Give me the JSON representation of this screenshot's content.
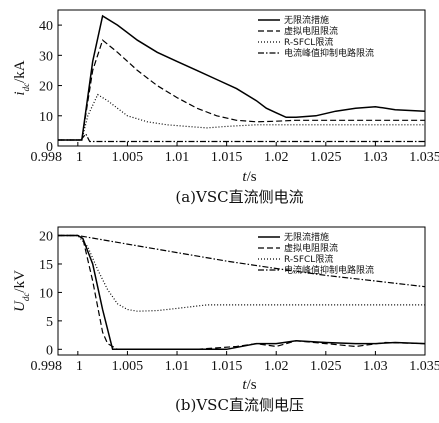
{
  "chart_data": [
    {
      "type": "line",
      "ylabel": "i_dc/kA",
      "ylabel_main": "i",
      "ylabel_sub": "dc",
      "ylabel_unit": "/kA",
      "xlabel_var": "t",
      "xlabel_unit": "/s",
      "caption": "(a)VSC直流侧电流",
      "xlim": [
        0.998,
        1.035
      ],
      "ylim": [
        0,
        45
      ],
      "x_ticks": [
        "0.998",
        "1",
        "1.005",
        "1.01",
        "1.015",
        "1.02",
        "1.025",
        "1.03",
        "1.035"
      ],
      "x_tick_values": [
        0.998,
        1.0,
        1.005,
        1.01,
        1.015,
        1.02,
        1.025,
        1.03,
        1.035
      ],
      "y_ticks": [
        "0",
        "10",
        "20",
        "30",
        "40"
      ],
      "y_tick_values": [
        0,
        10,
        20,
        30,
        40
      ],
      "legend_position": "top-right",
      "series": [
        {
          "name": "无限流措施",
          "style": "solid",
          "x": [
            0.998,
            1.0,
            1.0004,
            1.0015,
            1.0025,
            1.004,
            1.006,
            1.008,
            1.01,
            1.012,
            1.014,
            1.016,
            1.018,
            1.019,
            1.02,
            1.021,
            1.022,
            1.024,
            1.026,
            1.028,
            1.03,
            1.032,
            1.035
          ],
          "values": [
            2,
            2,
            2,
            28,
            43,
            40,
            35,
            31,
            28,
            25,
            22,
            19,
            15,
            12.5,
            11,
            9.5,
            9.5,
            10,
            11.5,
            12.5,
            13,
            12,
            11.5
          ]
        },
        {
          "name": "虚拟电阻限流",
          "style": "dashed",
          "x": [
            0.998,
            1.0,
            1.0004,
            1.0015,
            1.0025,
            1.004,
            1.006,
            1.008,
            1.01,
            1.012,
            1.014,
            1.016,
            1.018,
            1.02,
            1.022,
            1.024,
            1.026,
            1.028,
            1.03,
            1.035
          ],
          "values": [
            2,
            2,
            2,
            25,
            35,
            31,
            25,
            20,
            16,
            12.5,
            10,
            8.5,
            8,
            8.2,
            8.5,
            8.5,
            8.5,
            8.5,
            8.5,
            8.5
          ]
        },
        {
          "name": "R-SFCL限流",
          "style": "dotted",
          "x": [
            0.998,
            1.0,
            1.0004,
            1.001,
            1.002,
            1.003,
            1.005,
            1.007,
            1.009,
            1.011,
            1.013,
            1.015,
            1.018,
            1.021,
            1.025,
            1.03,
            1.035
          ],
          "values": [
            2,
            2,
            2,
            10,
            17,
            15,
            10,
            8,
            7,
            6.5,
            6,
            6.5,
            7,
            7,
            7,
            7,
            7
          ]
        },
        {
          "name": "电流峰值抑制电路限流",
          "style": "dashdot",
          "x": [
            0.998,
            1.0,
            1.0003,
            1.0008,
            1.0012,
            1.003,
            1.035
          ],
          "values": [
            2,
            2,
            2,
            4,
            1.5,
            1.5,
            1.5
          ]
        }
      ]
    },
    {
      "type": "line",
      "ylabel": "U_dc/kV",
      "ylabel_main": "U",
      "ylabel_sub": "dc",
      "ylabel_unit": "/kV",
      "xlabel_var": "t",
      "xlabel_unit": "/s",
      "caption": "(b)VSC直流侧电压",
      "xlim": [
        0.998,
        1.035
      ],
      "ylim": [
        -1,
        21.5
      ],
      "x_ticks": [
        "0.998",
        "1",
        "1.005",
        "1.01",
        "1.015",
        "1.02",
        "1.025",
        "1.03",
        "1.035"
      ],
      "x_tick_values": [
        0.998,
        1.0,
        1.005,
        1.01,
        1.015,
        1.02,
        1.025,
        1.03,
        1.035
      ],
      "y_ticks": [
        "0",
        "5",
        "10",
        "15",
        "20"
      ],
      "y_tick_values": [
        0,
        5,
        10,
        15,
        20
      ],
      "legend_position": "top-right",
      "series": [
        {
          "name": "无限流措施",
          "style": "solid",
          "x": [
            0.998,
            1.0,
            1.0005,
            1.0015,
            1.0025,
            1.0035,
            1.006,
            1.01,
            1.015,
            1.018,
            1.02,
            1.022,
            1.025,
            1.028,
            1.03,
            1.032,
            1.035
          ],
          "values": [
            20,
            20,
            19.5,
            15,
            7,
            0,
            0,
            0,
            0,
            1,
            1,
            1.5,
            1.2,
            1,
            1,
            1.2,
            1
          ]
        },
        {
          "name": "虚拟电阻限流",
          "style": "dashed",
          "x": [
            0.998,
            1.0,
            1.0005,
            1.0015,
            1.0025,
            1.003,
            1.004,
            1.008,
            1.012,
            1.016,
            1.018,
            1.02,
            1.022,
            1.025,
            1.028,
            1.031,
            1.035
          ],
          "values": [
            20,
            20,
            19.5,
            12,
            3,
            1,
            0,
            0,
            0,
            0.5,
            1,
            0.5,
            1.5,
            1,
            0.5,
            1.2,
            1
          ]
        },
        {
          "name": "R-SFCL限流",
          "style": "dotted",
          "x": [
            0.998,
            1.0,
            1.001,
            1.002,
            1.003,
            1.004,
            1.005,
            1.006,
            1.008,
            1.01,
            1.013,
            1.016,
            1.02,
            1.025,
            1.03,
            1.035
          ],
          "values": [
            20,
            20,
            18,
            14,
            10.5,
            8,
            7,
            6.7,
            6.8,
            7.2,
            7.8,
            7.8,
            7.8,
            7.8,
            7.8,
            7.8
          ]
        },
        {
          "name": "电流峰值抑制电路限流",
          "style": "dashdot",
          "x": [
            0.998,
            1.0,
            1.005,
            1.01,
            1.015,
            1.02,
            1.025,
            1.03,
            1.035
          ],
          "values": [
            20,
            20,
            18.5,
            17,
            15.5,
            14.2,
            13,
            12,
            11
          ]
        }
      ]
    }
  ]
}
